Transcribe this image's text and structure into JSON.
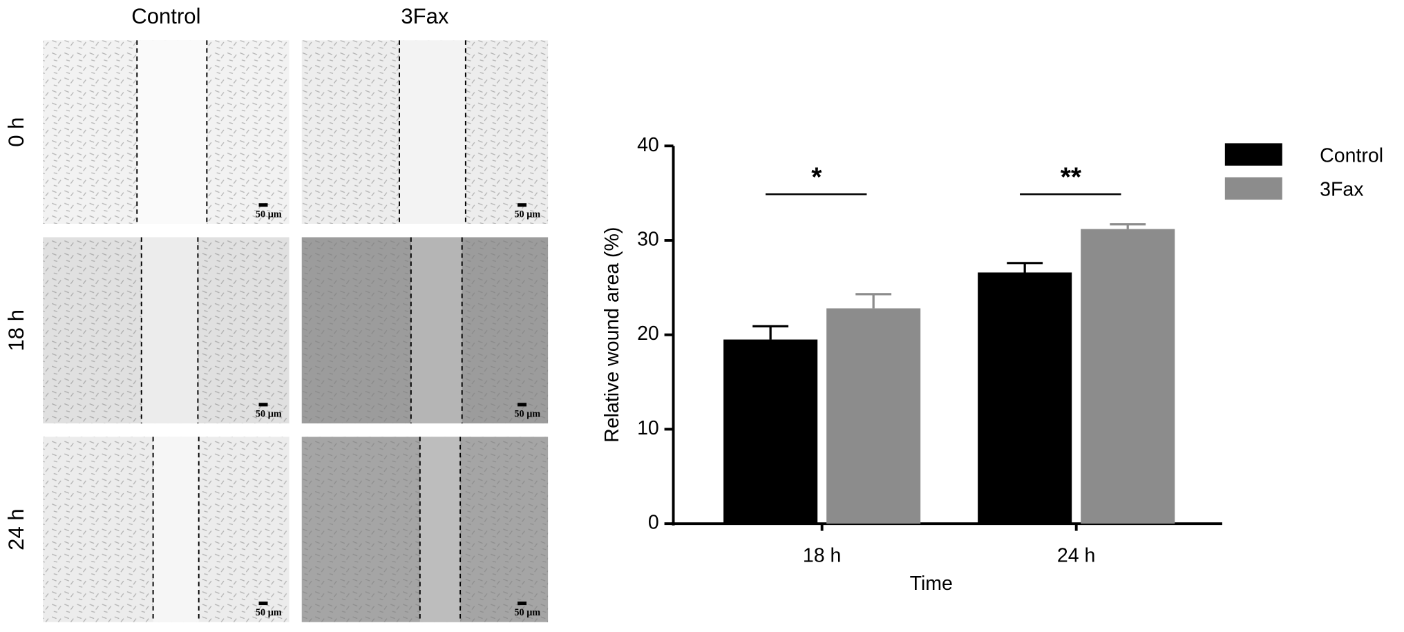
{
  "micrographs": {
    "columns": [
      "Control",
      "3Fax"
    ],
    "rows": [
      "0 h",
      "18 h",
      "24 h"
    ],
    "scale_bars": [
      [
        "50 μm",
        "50 μm"
      ],
      [
        "50 μm",
        "50 μm"
      ],
      [
        "50 μm",
        "50 μm"
      ]
    ]
  },
  "chart_data": {
    "type": "bar",
    "categories": [
      "18 h",
      "24 h"
    ],
    "series": [
      {
        "name": "Control",
        "color": "#000000",
        "values": [
          19.5,
          26.6
        ],
        "errors": [
          1.4,
          1.0
        ]
      },
      {
        "name": "3Fax",
        "color": "#8c8c8c",
        "values": [
          22.8,
          31.2
        ],
        "errors": [
          1.5,
          0.5
        ]
      }
    ],
    "ylim": [
      0,
      40
    ],
    "yticks": [
      0,
      10,
      20,
      30,
      40
    ],
    "xlabel": "Time",
    "ylabel": "Relative wound area (%)",
    "annotations": [
      "*",
      "**"
    ],
    "legend": "top-right",
    "grid": false
  }
}
